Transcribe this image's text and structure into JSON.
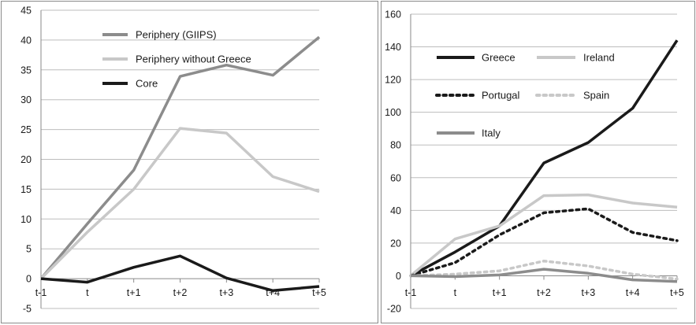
{
  "chart_data": [
    {
      "type": "line",
      "title": "",
      "xlabel": "",
      "ylabel": "",
      "categories": [
        "t-1",
        "t",
        "t+1",
        "t+2",
        "t+3",
        "t+4",
        "t+5"
      ],
      "ylim": [
        -5,
        45
      ],
      "yticks": [
        "-5",
        "0",
        "5",
        "10",
        "15",
        "20",
        "25",
        "30",
        "35",
        "40",
        "45"
      ],
      "grid": true,
      "legend_position": "top-left",
      "series": [
        {
          "name": "Periphery (GIIPS)",
          "color": "#8c8c8c",
          "dash": "solid",
          "values": [
            0,
            9.2,
            18.2,
            33.9,
            35.8,
            34.1,
            40.5
          ]
        },
        {
          "name": "Periphery without Greece",
          "color": "#c8c8c8",
          "dash": "solid",
          "values": [
            0,
            7.8,
            15.0,
            25.2,
            24.4,
            17.1,
            14.6
          ]
        },
        {
          "name": "Core",
          "color": "#1a1a1a",
          "dash": "solid",
          "values": [
            0,
            -0.6,
            1.9,
            3.8,
            0.1,
            -2.0,
            -1.3
          ]
        }
      ]
    },
    {
      "type": "line",
      "title": "",
      "xlabel": "",
      "ylabel": "",
      "categories": [
        "t-1",
        "t",
        "t+1",
        "t+2",
        "t+3",
        "t+4",
        "t+5"
      ],
      "ylim": [
        -20,
        160
      ],
      "yticks": [
        "-20",
        "0",
        "20",
        "40",
        "60",
        "80",
        "100",
        "120",
        "140",
        "160"
      ],
      "grid": true,
      "legend_position": "top-left",
      "series": [
        {
          "name": "Greece",
          "color": "#1a1a1a",
          "dash": "solid",
          "values": [
            0,
            14.5,
            30.5,
            69,
            81.5,
            102.5,
            144
          ]
        },
        {
          "name": "Ireland",
          "color": "#c8c8c8",
          "dash": "solid",
          "values": [
            0,
            22.5,
            30.5,
            49,
            49.5,
            44.5,
            42
          ]
        },
        {
          "name": "Portugal",
          "color": "#1a1a1a",
          "dash": "dotted",
          "values": [
            0,
            8,
            25,
            38.5,
            41,
            26.5,
            21.5
          ]
        },
        {
          "name": "Spain",
          "color": "#c8c8c8",
          "dash": "dotted",
          "values": [
            0,
            1,
            3,
            9,
            6,
            1,
            -2
          ]
        },
        {
          "name": "Italy",
          "color": "#8c8c8c",
          "dash": "solid",
          "values": [
            0,
            -0.5,
            0.5,
            4,
            1.5,
            -2.5,
            -3.5
          ]
        }
      ]
    }
  ]
}
